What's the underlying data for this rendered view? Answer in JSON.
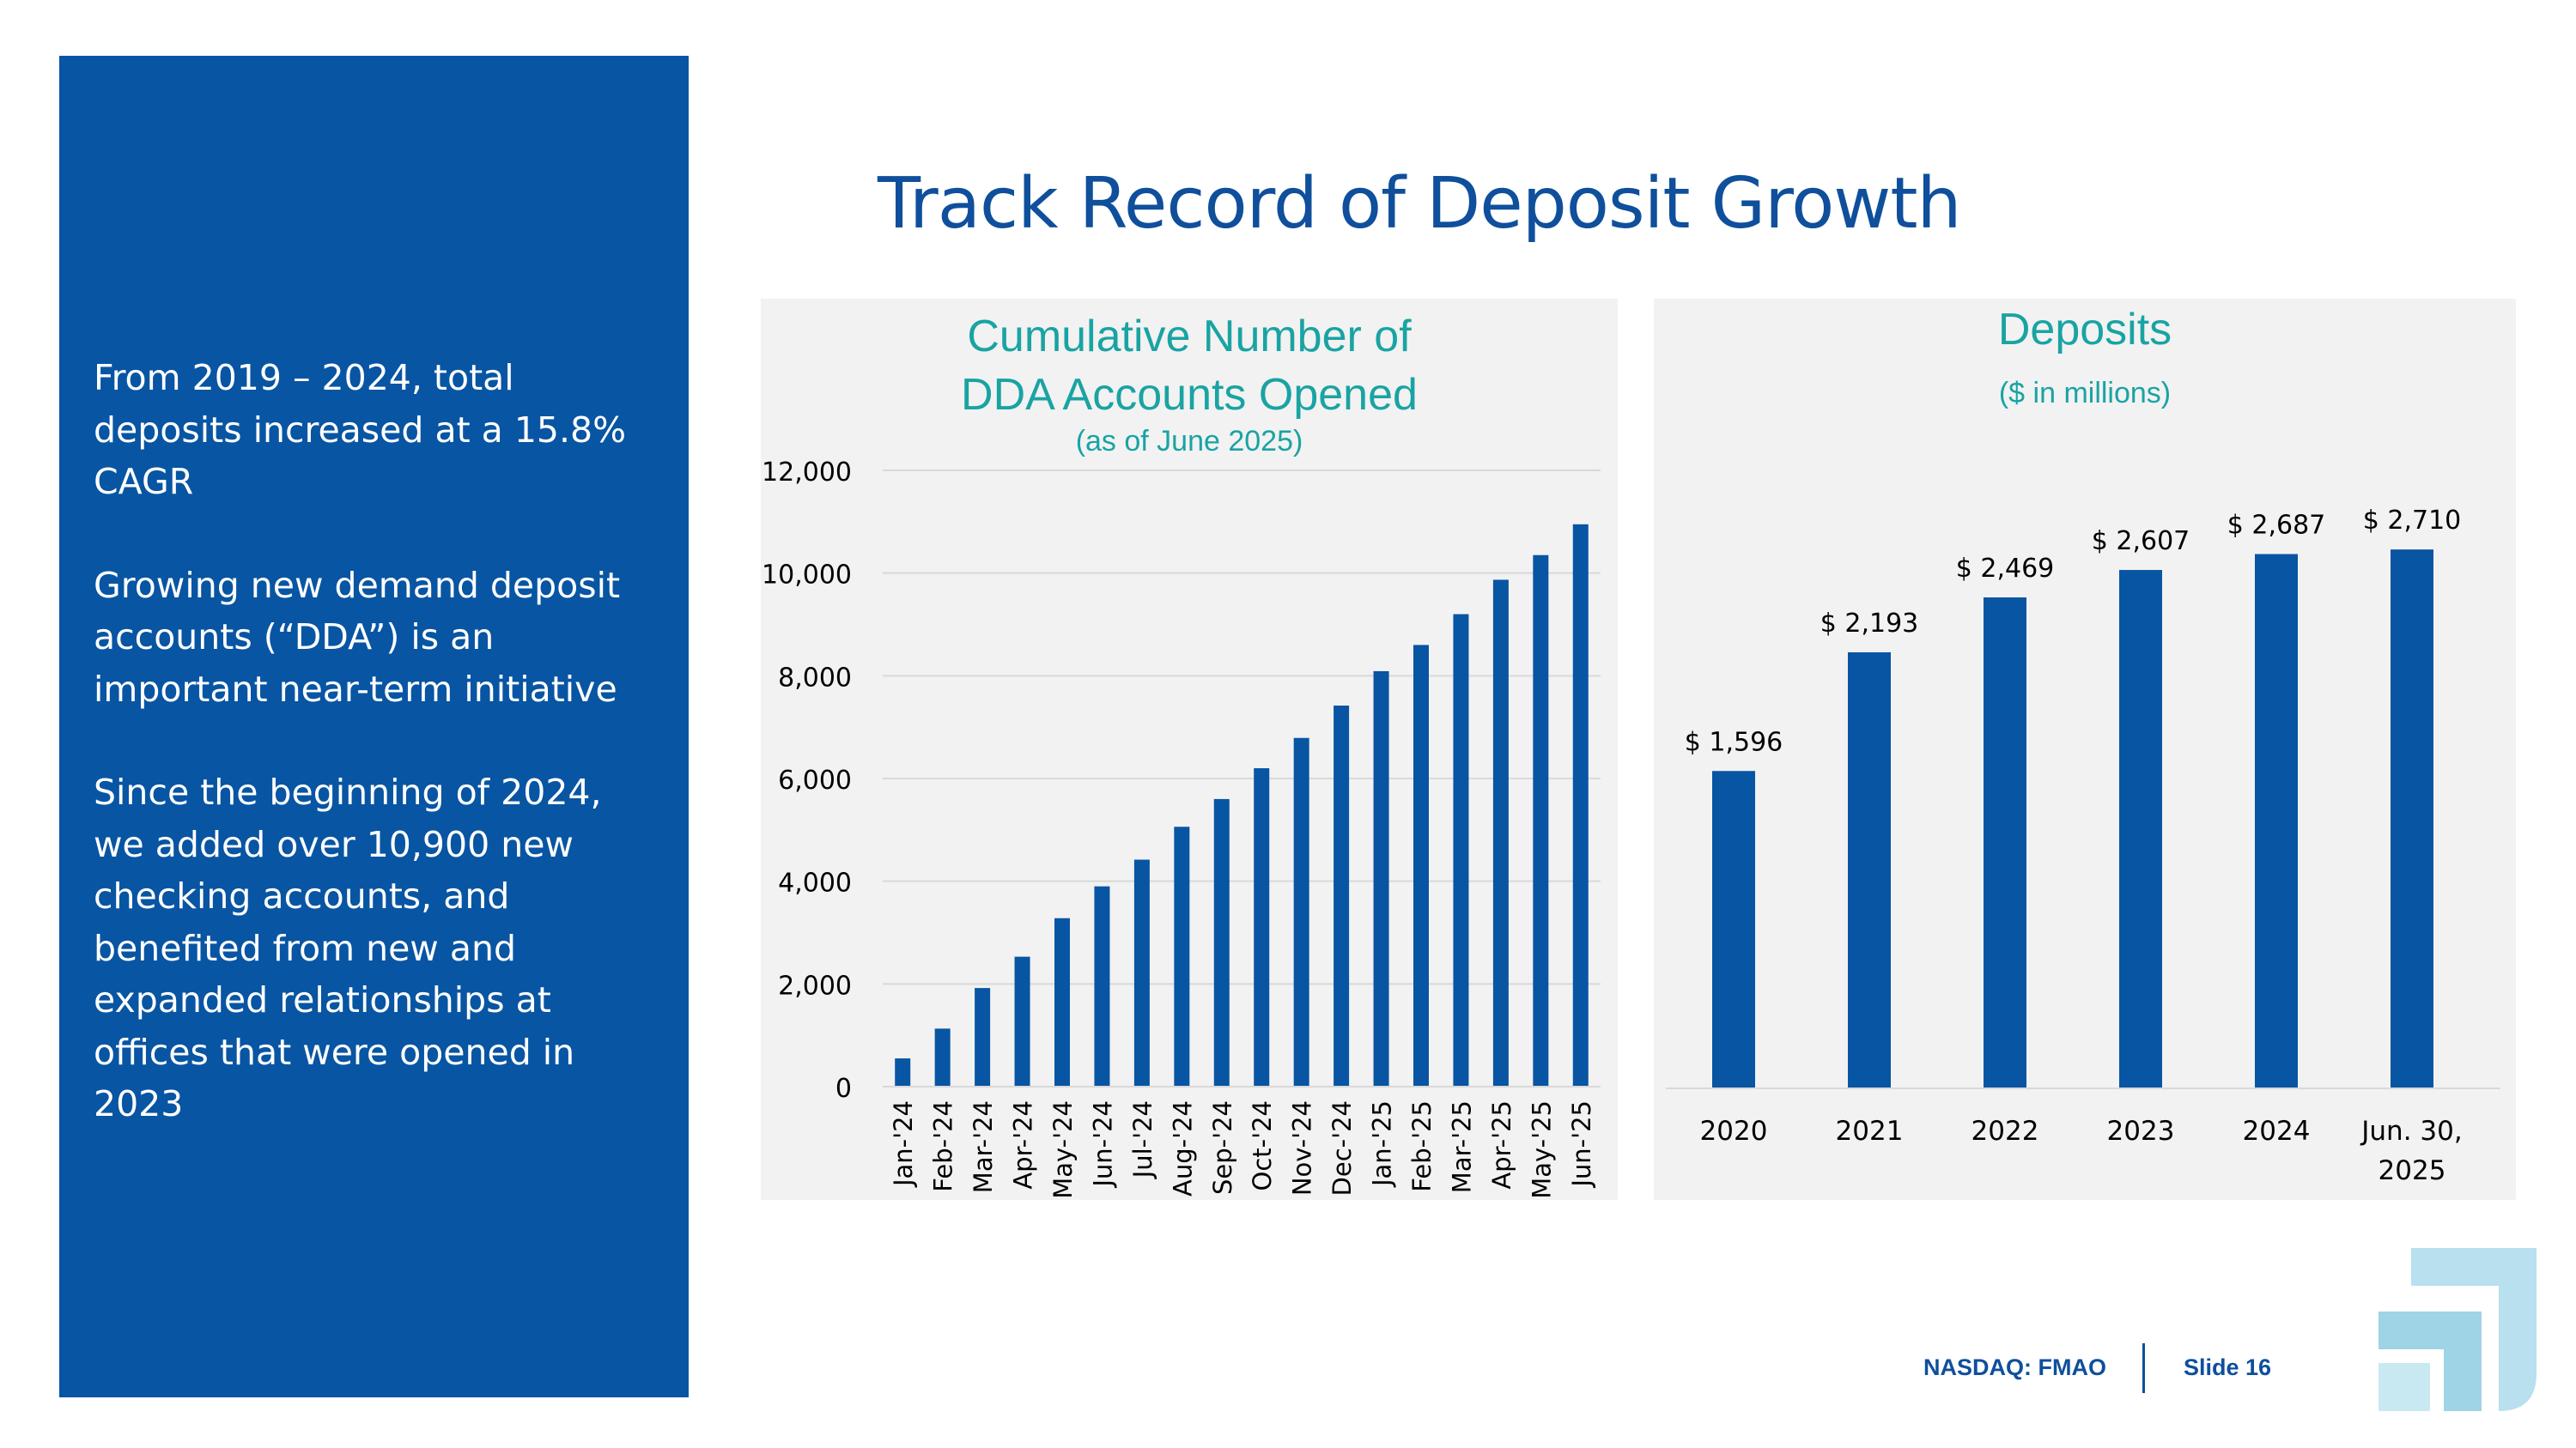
{
  "slide": {
    "title": "Track Record of Deposit Growth",
    "footer": {
      "ticker": "NASDAQ: FMAO",
      "slide_label": "Slide 16"
    }
  },
  "sidebar": {
    "paragraphs": [
      "From 2019 – 2024, total deposits increased at a 15.8% CAGR",
      "Growing new demand deposit accounts (“DDA”) is an important near-term initiative",
      "Since the beginning of 2024, we added over 10,900 new checking accounts, and benefited from new and expanded relationships at offices that were opened in 2023"
    ]
  },
  "colors": {
    "brand_blue": "#0855a3",
    "title_blue": "#0f4f9c",
    "teal": "#1aa3a3",
    "panel_bg": "#f2f2f2",
    "grid": "#d9d9d9"
  },
  "chart_data": [
    {
      "type": "bar",
      "title_line1": "Cumulative Number of",
      "title_line2": "DDA Accounts Opened",
      "subtitle": "(as of June 2025)",
      "categories": [
        "Jan-'24",
        "Feb-'24",
        "Mar-'24",
        "Apr-'24",
        "May-'24",
        "Jun-'24",
        "Jul-'24",
        "Aug-'24",
        "Sep-'24",
        "Oct-'24",
        "Nov-'24",
        "Dec-'24",
        "Jan-'25",
        "Feb-'25",
        "Mar-'25",
        "Apr-'25",
        "May-'25",
        "Jun-'25"
      ],
      "values": [
        550,
        1130,
        1920,
        2530,
        3280,
        3900,
        4420,
        5060,
        5600,
        6200,
        6790,
        7420,
        8090,
        8600,
        9200,
        9870,
        10350,
        10950
      ],
      "ylim": [
        0,
        12000
      ],
      "yticks": [
        0,
        2000,
        4000,
        6000,
        8000,
        10000,
        12000
      ],
      "ytick_labels": [
        "0",
        "2,000",
        "4,000",
        "6,000",
        "8,000",
        "10,000",
        "12,000"
      ],
      "grid": true
    },
    {
      "type": "bar",
      "title": "Deposits",
      "subtitle": "($ in millions)",
      "categories": [
        [
          "2020"
        ],
        [
          "2021"
        ],
        [
          "2022"
        ],
        [
          "2023"
        ],
        [
          "2024"
        ],
        [
          "Jun. 30,",
          "2025"
        ]
      ],
      "values": [
        1596,
        2193,
        2469,
        2607,
        2687,
        2710
      ],
      "data_labels": [
        "$ 1,596",
        "$ 2,193",
        "$ 2,469",
        "$ 2,607",
        "$ 2,687",
        "$ 2,710"
      ],
      "ylim": [
        0,
        3000
      ],
      "grid": false
    }
  ]
}
